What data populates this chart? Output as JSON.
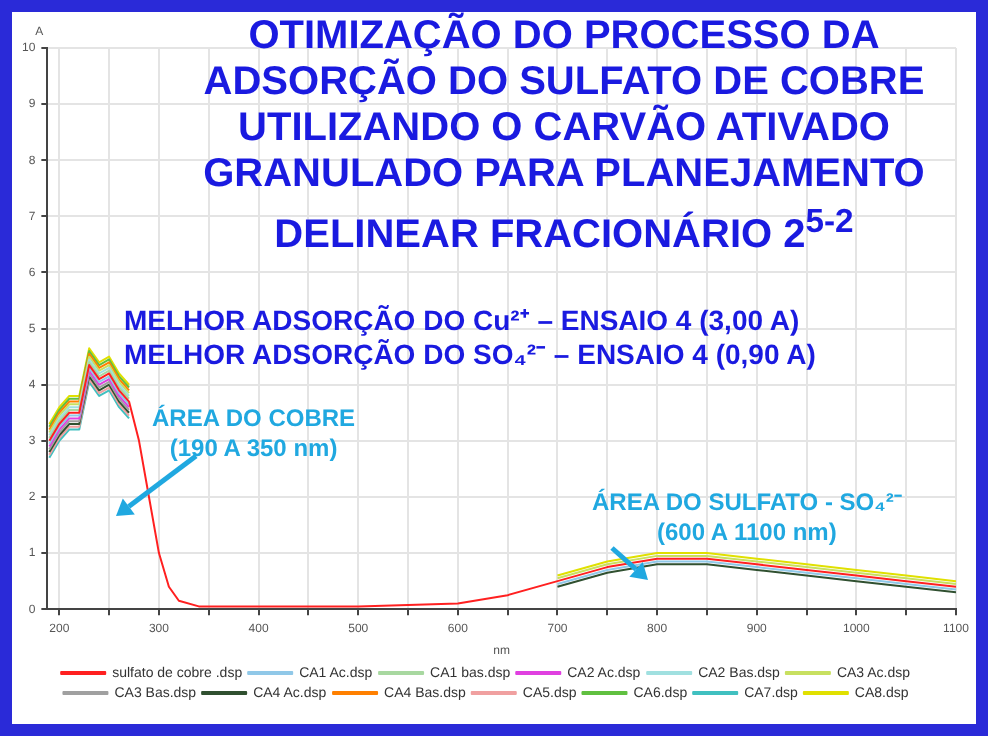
{
  "chart_data": {
    "type": "line",
    "title": "OTIMIZAÇÃO DO PROCESSO DA\nADSORÇÃO DO SULFATO DE COBRE\nUTILIZANDO O CARVÃO ATIVADO\nGRANULADO PARA PLANEJAMENTO\nDELINEAR FRACIONÁRIO 2$^{5-2}$",
    "subtitle": "MELHOR ADSORÇÃO DO Cu²⁺ – ENSAIO 4 (3,00 A)\nMELHOR ADSORÇÃO DO SO₄²⁻ – ENSAIO 4 (0,90 A)",
    "xlabel": "nm",
    "ylabel": "A",
    "annotations": [
      "ÁREA DO COBRE\n(190 A 350 nm)",
      "ÁREA DO SULFATO  - SO₄²⁻\n(600 A 1100 nm)"
    ],
    "x": [
      190,
      200,
      210,
      220,
      230,
      240,
      250,
      260,
      270,
      280,
      290,
      300,
      310,
      320,
      340,
      400,
      500,
      600,
      650,
      700,
      750,
      800,
      850,
      900,
      950,
      1000,
      1050,
      1100
    ],
    "series": [
      {
        "name": "sulfato de cobre .dsp",
        "color": "#ff2020",
        "values": [
          3.0,
          3.3,
          3.5,
          3.5,
          4.35,
          4.1,
          4.2,
          3.9,
          3.7,
          3.0,
          2.0,
          1.0,
          0.4,
          0.15,
          0.05,
          0.05,
          0.05,
          0.1,
          0.25,
          0.5,
          0.75,
          0.9,
          0.9,
          0.8,
          0.7,
          0.6,
          0.5,
          0.4
        ]
      },
      {
        "name": "CA1 Ac.dsp",
        "color": "#90c8e8",
        "values": [
          2.95,
          3.25,
          3.45,
          3.45,
          4.3,
          4.05,
          4.15,
          3.85,
          3.65,
          null,
          null,
          null,
          null,
          null,
          null,
          null,
          null,
          null,
          null,
          0.45,
          0.7,
          0.85,
          0.85,
          0.75,
          0.65,
          0.55,
          0.45,
          0.35
        ]
      },
      {
        "name": "CA1 bas.dsp",
        "color": "#a8d8a0",
        "values": [
          3.05,
          3.35,
          3.55,
          3.55,
          4.4,
          4.15,
          4.25,
          3.95,
          3.75,
          null,
          null,
          null,
          null,
          null,
          null,
          null,
          null,
          null,
          null,
          null,
          null,
          null,
          null,
          null,
          null,
          null,
          null,
          null
        ]
      },
      {
        "name": "CA2 Ac.dsp",
        "color": "#e040e0",
        "values": [
          2.9,
          3.2,
          3.4,
          3.4,
          4.25,
          4.0,
          4.1,
          3.8,
          3.6,
          null,
          null,
          null,
          null,
          null,
          null,
          null,
          null,
          null,
          null,
          null,
          null,
          null,
          null,
          null,
          null,
          null,
          null,
          null
        ]
      },
      {
        "name": "CA2 Bas.dsp",
        "color": "#a0e0e0",
        "values": [
          3.1,
          3.4,
          3.6,
          3.6,
          4.45,
          4.2,
          4.3,
          4.0,
          3.8,
          null,
          null,
          null,
          null,
          null,
          null,
          null,
          null,
          null,
          null,
          null,
          null,
          null,
          null,
          null,
          null,
          null,
          null,
          null
        ]
      },
      {
        "name": "CA3 Ac.dsp",
        "color": "#c8e060",
        "values": [
          3.15,
          3.45,
          3.65,
          3.65,
          4.5,
          4.25,
          4.35,
          4.05,
          3.85,
          null,
          null,
          null,
          null,
          null,
          null,
          null,
          null,
          null,
          null,
          0.55,
          0.8,
          0.95,
          0.95,
          0.85,
          0.75,
          0.65,
          0.55,
          0.45
        ]
      },
      {
        "name": "CA3 Bas.dsp",
        "color": "#a0a0a0",
        "values": [
          2.85,
          3.15,
          3.35,
          3.35,
          4.2,
          3.95,
          4.05,
          3.75,
          3.55,
          null,
          null,
          null,
          null,
          null,
          null,
          null,
          null,
          null,
          null,
          null,
          null,
          null,
          null,
          null,
          null,
          null,
          null,
          null
        ]
      },
      {
        "name": "CA4 Ac.dsp",
        "color": "#305030",
        "values": [
          2.8,
          3.1,
          3.3,
          3.3,
          4.15,
          3.9,
          4.0,
          3.7,
          3.5,
          null,
          null,
          null,
          null,
          null,
          null,
          null,
          null,
          null,
          null,
          0.4,
          0.65,
          0.8,
          0.8,
          0.7,
          0.6,
          0.5,
          0.4,
          0.3
        ]
      },
      {
        "name": "CA4 Bas.dsp",
        "color": "#ff8000",
        "values": [
          3.2,
          3.5,
          3.7,
          3.7,
          4.55,
          4.3,
          4.4,
          4.1,
          3.9,
          null,
          null,
          null,
          null,
          null,
          null,
          null,
          null,
          null,
          null,
          null,
          null,
          null,
          null,
          null,
          null,
          null,
          null,
          null
        ]
      },
      {
        "name": "CA5.dsp",
        "color": "#f0a0a0",
        "values": [
          2.75,
          3.05,
          3.25,
          3.25,
          4.1,
          3.85,
          3.95,
          3.65,
          3.45,
          null,
          null,
          null,
          null,
          null,
          null,
          null,
          null,
          null,
          null,
          null,
          null,
          null,
          null,
          null,
          null,
          null,
          null,
          null
        ]
      },
      {
        "name": "CA6.dsp",
        "color": "#60c040",
        "values": [
          3.25,
          3.55,
          3.75,
          3.75,
          4.6,
          4.35,
          4.45,
          4.15,
          3.95,
          null,
          null,
          null,
          null,
          null,
          null,
          null,
          null,
          null,
          null,
          null,
          null,
          null,
          null,
          null,
          null,
          null,
          null,
          null
        ]
      },
      {
        "name": "CA7.dsp",
        "color": "#40c0c0",
        "values": [
          2.7,
          3.0,
          3.2,
          3.2,
          4.05,
          3.8,
          3.9,
          3.6,
          3.4,
          null,
          null,
          null,
          null,
          null,
          null,
          null,
          null,
          null,
          null,
          null,
          null,
          null,
          null,
          null,
          null,
          null,
          null,
          null
        ]
      },
      {
        "name": "CA8.dsp",
        "color": "#e0e000",
        "values": [
          3.3,
          3.6,
          3.8,
          3.8,
          4.65,
          4.4,
          4.5,
          4.2,
          4.0,
          null,
          null,
          null,
          null,
          null,
          null,
          null,
          null,
          null,
          null,
          0.6,
          0.85,
          1.0,
          1.0,
          0.9,
          0.8,
          0.7,
          0.6,
          0.5
        ]
      }
    ],
    "xlim": [
      188,
      1100
    ],
    "xticks": [
      200,
      {
        "value": 250,
        "label": null
      },
      300,
      {
        "value": 350,
        "label": null
      },
      400,
      {
        "value": 450,
        "label": null
      },
      500,
      {
        "value": 550,
        "label": null
      },
      600,
      {
        "value": 650,
        "label": null
      },
      700,
      {
        "value": 750,
        "label": null
      },
      800,
      {
        "value": 850,
        "label": null
      },
      900,
      {
        "value": 950,
        "label": null
      },
      1000,
      {
        "value": 1050,
        "label": null
      },
      1100
    ],
    "ylim": [
      0,
      10
    ],
    "yticks": [
      0,
      1,
      2,
      3,
      4,
      5,
      6,
      7,
      8,
      9,
      10
    ],
    "grid": true,
    "legend": "bottom",
    "marker": "none",
    "line_style": "solid"
  }
}
